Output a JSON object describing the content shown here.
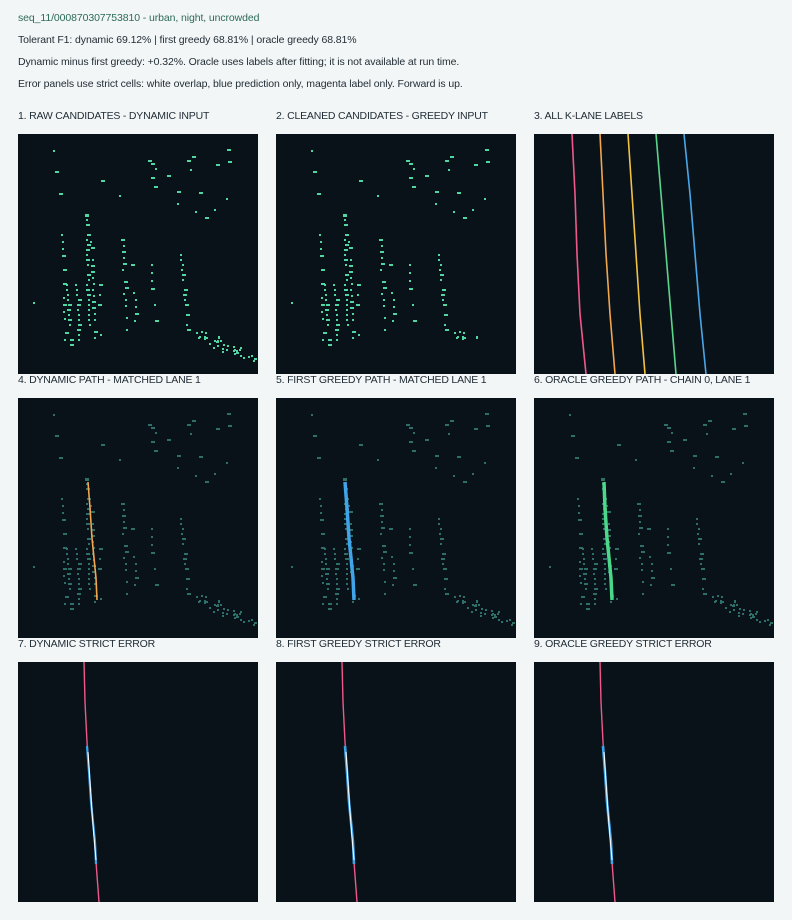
{
  "header": {
    "title": "seq_11/000870307753810 - urban, night, uncrowded",
    "line1": "Tolerant F1: dynamic 69.12%  |  first greedy 68.81%  |  oracle greedy 68.81%",
    "line2": "Dynamic minus first greedy: +0.32%. Oracle uses labels after fitting; it is not available at run time.",
    "line3": "Error panels use strict cells: white overlap, blue prediction only, magenta label only. Forward is up."
  },
  "panels": [
    {
      "title": "1. RAW CANDIDATES - DYNAMIC INPUT"
    },
    {
      "title": "2. CLEANED CANDIDATES - GREEDY INPUT"
    },
    {
      "title": "3. ALL K-LANE LABELS"
    },
    {
      "title": "4. DYNAMIC PATH - MATCHED LANE 1"
    },
    {
      "title": "5. FIRST GREEDY PATH - MATCHED LANE 1"
    },
    {
      "title": "6. ORACLE GREEDY PATH - CHAIN 0, LANE 1"
    },
    {
      "title": "7. DYNAMIC STRICT ERROR"
    },
    {
      "title": "8. FIRST GREEDY STRICT ERROR"
    },
    {
      "title": "9. ORACLE GREEDY STRICT ERROR"
    }
  ],
  "colors": {
    "background": "#0a1219",
    "candidate": "#4fd6a2",
    "candidate_dim": "#2f6f6a",
    "lane_colors": [
      "#f0588a",
      "#f2a64e",
      "#f4c242",
      "#58d68c",
      "#4aa6e6"
    ],
    "dynamic_path": "#f2a64e",
    "first_greedy_path": "#3fa4e8",
    "oracle_greedy_path": "#4bd88a",
    "error_overlap": "#ffffff",
    "error_prediction_only": "#3fa4e8",
    "error_label_only": "#f0588a"
  }
}
